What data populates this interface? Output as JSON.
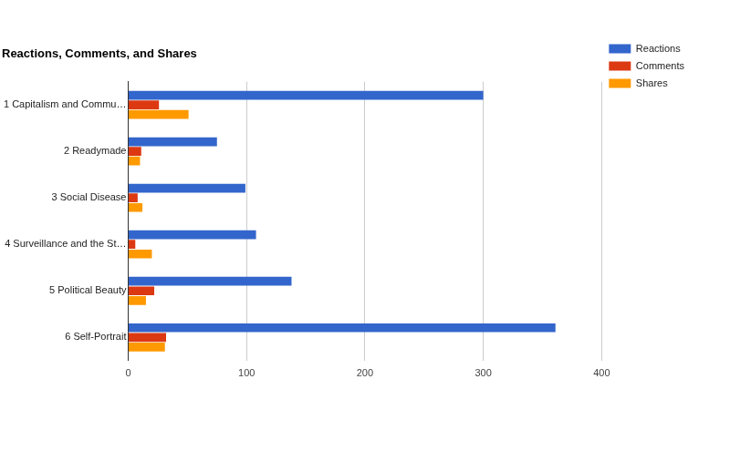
{
  "chart_data": {
    "type": "bar",
    "title": "Reactions, Comments, and Shares",
    "orientation": "horizontal",
    "categories": [
      "1 Capitalism and Commu…",
      "2 Readymade",
      "3 Social Disease",
      "4 Surveillance and the St…",
      "5 Political Beauty",
      "6 Self-Portrait"
    ],
    "series": [
      {
        "name": "Reactions",
        "color": "#3366cc",
        "values": [
          300,
          75,
          99,
          108,
          138,
          361
        ]
      },
      {
        "name": "Comments",
        "color": "#dc3912",
        "values": [
          26,
          11,
          8,
          6,
          22,
          32
        ]
      },
      {
        "name": "Shares",
        "color": "#ff9900",
        "values": [
          51,
          10,
          12,
          20,
          15,
          31
        ]
      }
    ],
    "xlim": [
      0,
      400
    ],
    "xticks": [
      0,
      100,
      200,
      300,
      400
    ],
    "grid": true,
    "legend": "top-right"
  }
}
